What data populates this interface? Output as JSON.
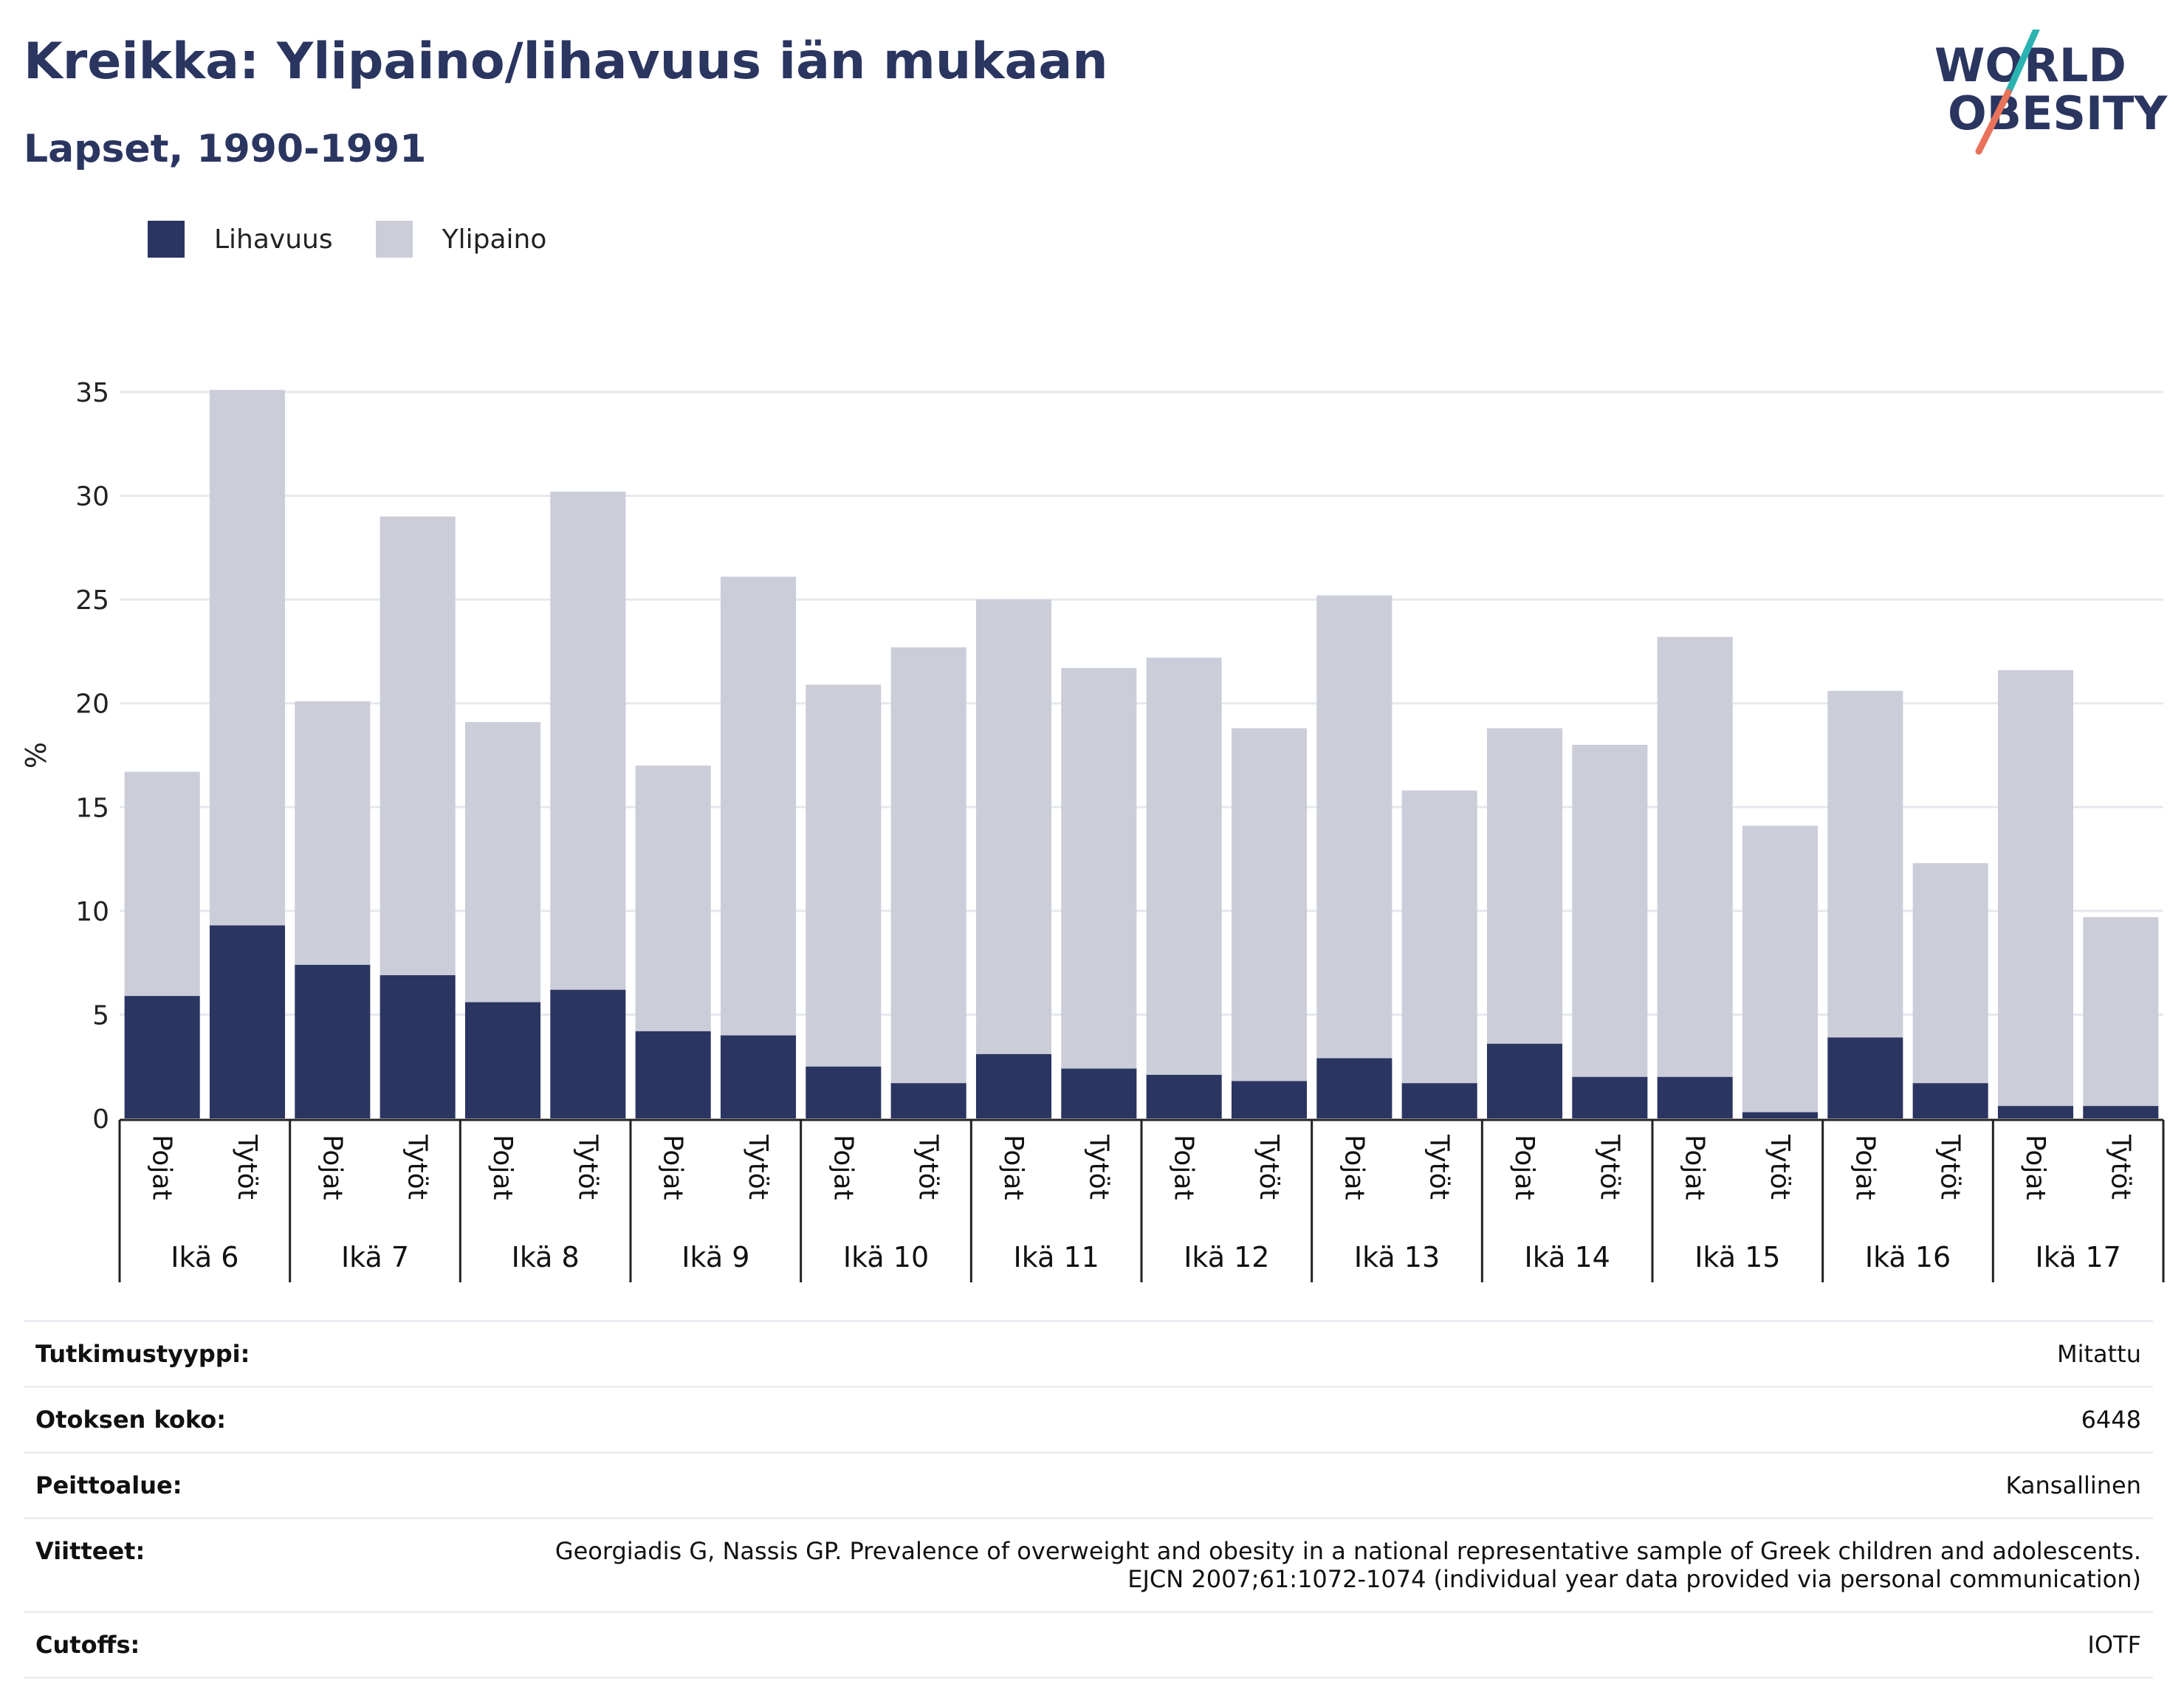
{
  "title": "Kreikka: Ylipaino/lihavuus iän mukaan",
  "subtitle": "Lapset, 1990-1991",
  "logo": {
    "line1": "WORLD",
    "line2": "OBESITY"
  },
  "colors": {
    "obesity": "#2a3561",
    "overweight": "#cbcdd9",
    "text": "#2a3560",
    "logo_stripe_teal": "#2bb3b1",
    "logo_stripe_coral": "#e8735a"
  },
  "legend": [
    {
      "label": "Lihavuus",
      "color": "#2a3561"
    },
    {
      "label": "Ylipaino",
      "color": "#cbcdd9"
    }
  ],
  "chart_data": {
    "type": "bar",
    "stacked": true,
    "ylabel": "%",
    "ylim": [
      0,
      35
    ],
    "yticks": [
      0,
      5,
      10,
      15,
      20,
      25,
      30,
      35
    ],
    "grid": true,
    "legend_position": "top-left",
    "groups": [
      "Ikä 6",
      "Ikä 7",
      "Ikä 8",
      "Ikä 9",
      "Ikä 10",
      "Ikä 11",
      "Ikä 12",
      "Ikä 13",
      "Ikä 14",
      "Ikä 15",
      "Ikä 16",
      "Ikä 17"
    ],
    "subcategories": [
      "Pojat",
      "Tytöt"
    ],
    "series": [
      {
        "name": "Lihavuus",
        "values": [
          5.9,
          9.3,
          7.4,
          6.9,
          5.6,
          6.2,
          4.2,
          4.0,
          2.5,
          1.7,
          3.1,
          2.4,
          2.1,
          1.8,
          2.9,
          1.7,
          3.6,
          2.0,
          2.0,
          0.3,
          3.9,
          1.7,
          0.6,
          0.6
        ]
      },
      {
        "name": "Ylipaino",
        "values": [
          10.8,
          25.8,
          12.7,
          22.1,
          13.5,
          24.0,
          12.8,
          22.1,
          18.4,
          21.0,
          21.9,
          19.3,
          20.1,
          17.0,
          22.3,
          14.1,
          15.2,
          16.0,
          21.2,
          13.8,
          16.7,
          10.6,
          21.0,
          9.1
        ]
      }
    ]
  },
  "details": [
    {
      "label": "Tutkimustyyppi:",
      "value": [
        "Mitattu"
      ]
    },
    {
      "label": "Otoksen koko:",
      "value": [
        "6448"
      ]
    },
    {
      "label": "Peittoalue:",
      "value": [
        "Kansallinen"
      ]
    },
    {
      "label": "Viitteet:",
      "value": [
        "Georgiadis G, Nassis GP. Prevalence of overweight and obesity in a national representative sample of Greek children and adolescents.",
        "EJCN 2007;61:1072-1074 (individual year data provided via personal communication)"
      ]
    },
    {
      "label": "Cutoffs:",
      "value": [
        "IOTF"
      ]
    }
  ]
}
